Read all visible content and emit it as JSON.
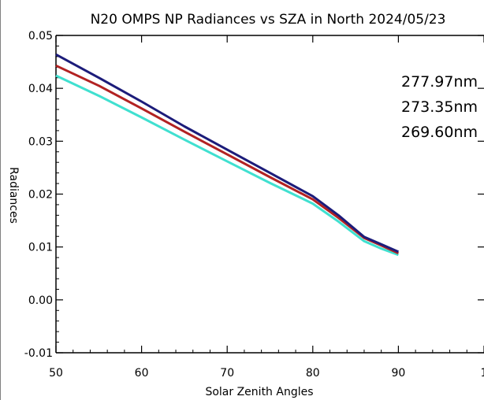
{
  "colors": {
    "series_277": "#b22222",
    "series_273": "#40e0d0",
    "series_269": "#1c1c7a",
    "axis": "#000000",
    "background": "#ffffff"
  },
  "chart_data": {
    "type": "line",
    "title": "N20 OMPS NP Radiances vs SZA in North 2024/05/23",
    "xlabel": "Solar Zenith Angles",
    "ylabel": "Radiances",
    "xlim": [
      50,
      100
    ],
    "ylim": [
      -0.01,
      0.05
    ],
    "xticks": [
      "50",
      "60",
      "70",
      "80",
      "90",
      "1"
    ],
    "yticks": [
      "-0.01",
      "0.00",
      "0.01",
      "0.02",
      "0.03",
      "0.04",
      "0.05"
    ],
    "grid": false,
    "legend_position": "right",
    "x": [
      50,
      55,
      60,
      65,
      70,
      75,
      80,
      83,
      86,
      88,
      90
    ],
    "series": [
      {
        "name": "277.97nm",
        "values": [
          0.0443,
          0.0405,
          0.0362,
          0.0318,
          0.0275,
          0.0232,
          0.019,
          0.0155,
          0.0117,
          0.0103,
          0.0088
        ]
      },
      {
        "name": "273.35nm",
        "values": [
          0.0424,
          0.0386,
          0.0345,
          0.0303,
          0.0262,
          0.0221,
          0.0182,
          0.0148,
          0.0111,
          0.0097,
          0.0085
        ]
      },
      {
        "name": "269.60nm",
        "values": [
          0.0464,
          0.042,
          0.0375,
          0.0328,
          0.0284,
          0.024,
          0.0196,
          0.016,
          0.0119,
          0.0105,
          0.0091
        ]
      }
    ]
  }
}
